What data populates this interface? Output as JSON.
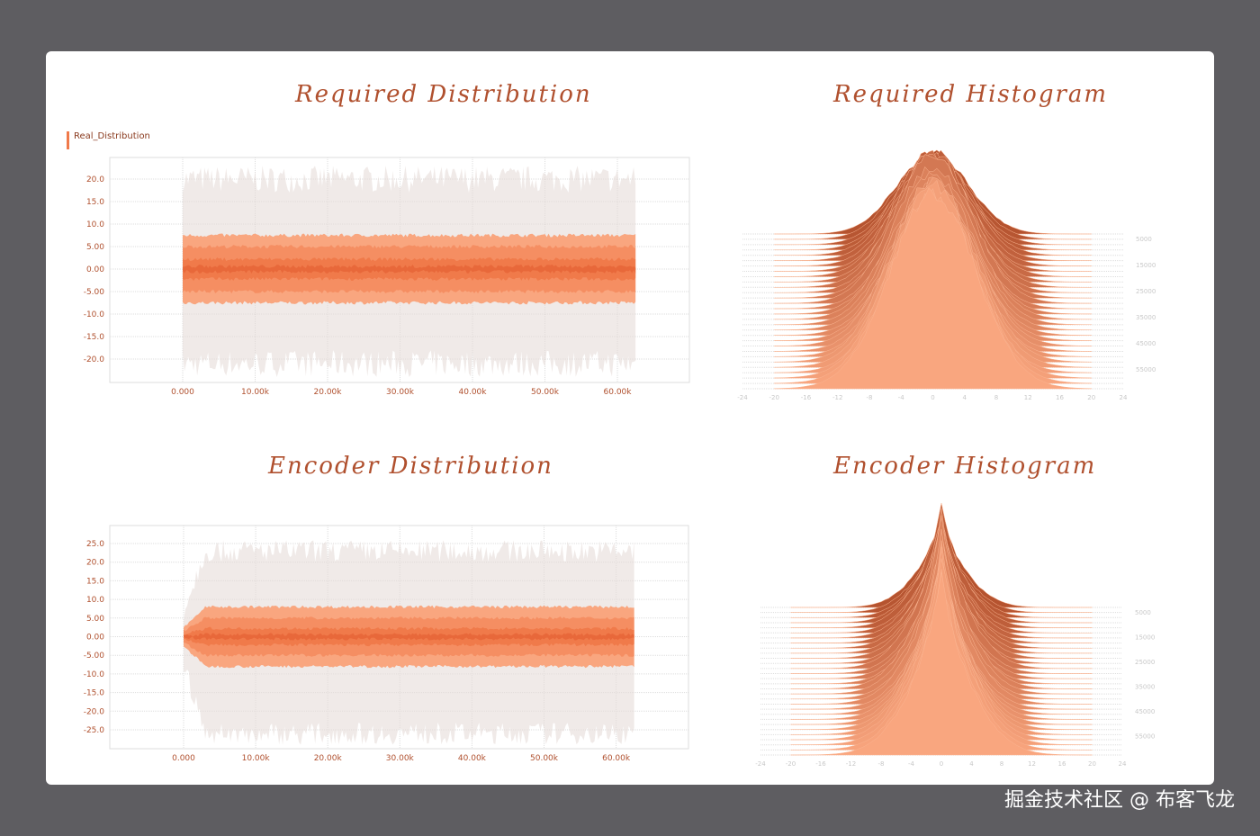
{
  "watermark": "掘金技术社区 @ 布客飞龙",
  "colors": {
    "dark": "#b5532f",
    "mid": "#f07a4a",
    "light": "#f9a67f",
    "grid": "#dddddd",
    "noise": "#e6dcd8"
  },
  "chart_data": [
    {
      "type": "area",
      "title": "Required Distribution",
      "legend": "Real_Distribution",
      "x_ticks": [
        "0.000",
        "10.00k",
        "20.00k",
        "30.00k",
        "40.00k",
        "50.00k",
        "60.00k"
      ],
      "y_ticks": [
        "20.0",
        "15.0",
        "10.0",
        "5.00",
        "0.00",
        "-5.00",
        "-10.0",
        "-15.0",
        "-20.0"
      ],
      "xlim": [
        0,
        62500
      ],
      "ylim": [
        -25,
        25
      ],
      "bands": {
        "max": 20,
        "outer": 7.5,
        "middle": 5,
        "inner": 2.2,
        "min": -21
      },
      "start_width": 1
    },
    {
      "type": "area",
      "title": "Encoder Distribution",
      "x_ticks": [
        "0.000",
        "10.00k",
        "20.00k",
        "30.00k",
        "40.00k",
        "50.00k",
        "60.00k"
      ],
      "y_ticks": [
        "25.0",
        "20.0",
        "15.0",
        "10.0",
        "5.00",
        "0.00",
        "-5.00",
        "-10.0",
        "-15.0",
        "-20.0",
        "-25.0"
      ],
      "xlim": [
        0,
        62500
      ],
      "ylim": [
        -30,
        30
      ],
      "bands": {
        "max": 23,
        "outer": 8,
        "middle": 5,
        "inner": 2.2,
        "min": -26
      },
      "start_width": 0.3
    },
    {
      "type": "area",
      "title": "Required Histogram",
      "subtype": "ridgeline",
      "x_ticks": [
        "-24",
        "-20",
        "-16",
        "-12",
        "-8",
        "-4",
        "0",
        "4",
        "8",
        "12",
        "16",
        "20",
        "24"
      ],
      "y_ticks": [
        "5000",
        "15000",
        "25000",
        "35000",
        "45000",
        "55000"
      ],
      "shape": "gaussian",
      "sigma": 4.5
    },
    {
      "type": "area",
      "title": "Encoder Histogram",
      "subtype": "ridgeline",
      "x_ticks": [
        "-24",
        "-20",
        "-16",
        "-12",
        "-8",
        "-4",
        "0",
        "4",
        "8",
        "12",
        "16",
        "20",
        "24"
      ],
      "y_ticks": [
        "5000",
        "15000",
        "25000",
        "35000",
        "45000",
        "55000"
      ],
      "shape": "laplace",
      "sigma": 4
    }
  ]
}
